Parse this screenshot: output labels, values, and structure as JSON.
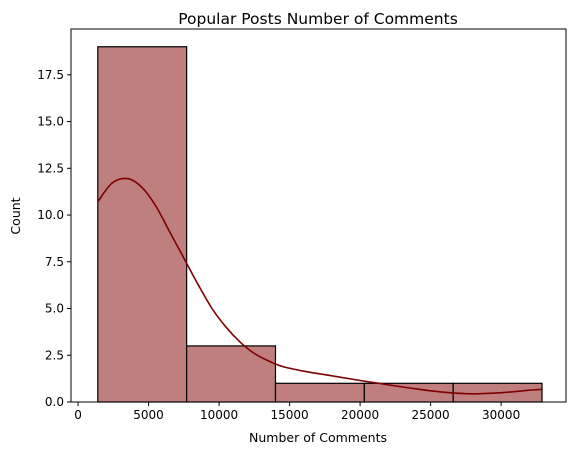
{
  "chart_data": {
    "type": "bar",
    "subtype": "histogram-with-kde",
    "title": "Popular Posts Number of Comments",
    "xlabel": "Number of Comments",
    "ylabel": "Count",
    "xlim": [
      -500,
      34600
    ],
    "ylim": [
      0,
      19.95
    ],
    "xticks": [
      0,
      5000,
      10000,
      15000,
      20000,
      25000,
      30000
    ],
    "xtick_labels": [
      "0",
      "5000",
      "10000",
      "15000",
      "20000",
      "25000",
      "30000"
    ],
    "yticks": [
      0,
      2.5,
      5,
      7.5,
      10,
      12.5,
      15,
      17.5
    ],
    "ytick_labels": [
      "0.0",
      "2.5",
      "5.0",
      "7.5",
      "10.0",
      "12.5",
      "15.0",
      "17.5"
    ],
    "bins": [
      {
        "x0": 1400,
        "x1": 7700,
        "count": 19
      },
      {
        "x0": 7700,
        "x1": 14000,
        "count": 3
      },
      {
        "x0": 14000,
        "x1": 20300,
        "count": 1
      },
      {
        "x0": 20300,
        "x1": 26600,
        "count": 1
      },
      {
        "x0": 26600,
        "x1": 32900,
        "count": 1
      }
    ],
    "kde": {
      "x": [
        1400,
        2400,
        3500,
        4500,
        5500,
        6500,
        7500,
        8500,
        9500,
        10500,
        11500,
        12500,
        13500,
        14500,
        16000,
        18000,
        20000,
        22000,
        24000,
        26000,
        28000,
        30000,
        32000,
        32900
      ],
      "y": [
        10.7,
        11.7,
        11.95,
        11.5,
        10.5,
        9.1,
        7.7,
        6.3,
        5.0,
        4.0,
        3.2,
        2.6,
        2.2,
        1.9,
        1.65,
        1.4,
        1.15,
        0.92,
        0.7,
        0.52,
        0.44,
        0.5,
        0.63,
        0.68
      ]
    },
    "grid": false,
    "legend": "none",
    "colors": {
      "bar_fill": "#bf7f7f",
      "bar_edge": "#000000",
      "kde_line": "#800000",
      "axes": "#000000"
    }
  }
}
